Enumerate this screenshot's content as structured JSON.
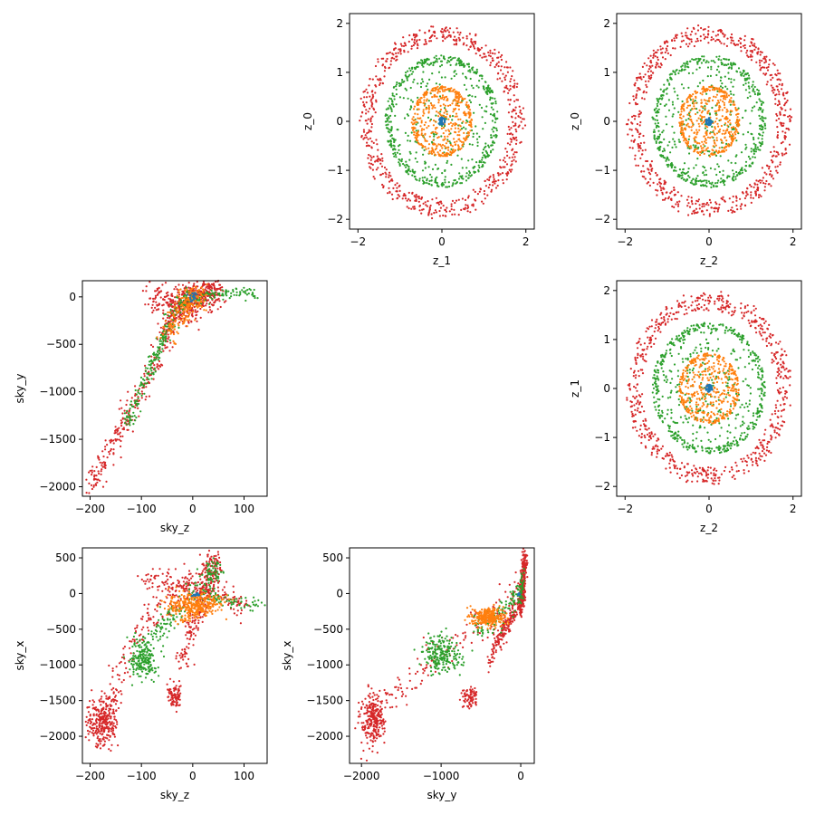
{
  "figure": {
    "background": "#ffffff"
  },
  "colors": {
    "ring_r0": "#1f77b4",
    "ring_r05": "#ff7f0e",
    "ring_r1": "#2ca02c",
    "ring_r2": "#d62728"
  },
  "chart_data": [
    {
      "type": "scatter",
      "grid": false,
      "xlabel": "z_1",
      "ylabel": "z_0",
      "xlim": [
        -2.2,
        2.2
      ],
      "ylim": [
        -2.2,
        2.2
      ],
      "xticks": [
        -2,
        0,
        2
      ],
      "xtick_labels": [
        "−2",
        "0",
        "2"
      ],
      "yticks": [
        -2,
        -1,
        0,
        1,
        2
      ],
      "ytick_labels": [
        "−2",
        "−1",
        "0",
        "1",
        "2"
      ],
      "series": [
        {
          "color": "#d62728",
          "kind": "ring",
          "r_min": 1.9,
          "r_max": 2.0,
          "ring_bias": 0.35,
          "inner": 0.0,
          "count": 650
        },
        {
          "color": "#2ca02c",
          "kind": "ring",
          "r_min": 0.0,
          "r_max": 1.35,
          "ring_bias": 0.55,
          "inner": 1.2,
          "count": 650
        },
        {
          "color": "#ff7f0e",
          "kind": "ring",
          "r_min": 0.0,
          "r_max": 0.72,
          "ring_bias": 0.3,
          "inner": 0.65,
          "count": 450
        },
        {
          "color": "#1f77b4",
          "kind": "ring",
          "r_min": 0.0,
          "r_max": 0.08,
          "ring_bias": 0.0,
          "inner": 0.0,
          "count": 40
        }
      ]
    },
    {
      "type": "scatter",
      "grid": false,
      "xlabel": "z_2",
      "ylabel": "z_0",
      "xlim": [
        -2.2,
        2.2
      ],
      "ylim": [
        -2.2,
        2.2
      ],
      "xticks": [
        -2,
        0,
        2
      ],
      "xtick_labels": [
        "−2",
        "0",
        "2"
      ],
      "yticks": [
        -2,
        -1,
        0,
        1,
        2
      ],
      "ytick_labels": [
        "−2",
        "−1",
        "0",
        "1",
        "2"
      ],
      "series": [
        {
          "color": "#d62728",
          "kind": "ring",
          "r_min": 1.9,
          "r_max": 2.0,
          "ring_bias": 0.35,
          "inner": 0.0,
          "count": 650
        },
        {
          "color": "#2ca02c",
          "kind": "ring",
          "r_min": 0.0,
          "r_max": 1.35,
          "ring_bias": 0.55,
          "inner": 1.2,
          "count": 650
        },
        {
          "color": "#ff7f0e",
          "kind": "ring",
          "r_min": 0.0,
          "r_max": 0.72,
          "ring_bias": 0.3,
          "inner": 0.65,
          "count": 450
        },
        {
          "color": "#1f77b4",
          "kind": "ring",
          "r_min": 0.0,
          "r_max": 0.08,
          "ring_bias": 0.0,
          "inner": 0.0,
          "count": 40
        }
      ]
    },
    {
      "type": "scatter",
      "grid": false,
      "xlabel": "sky_z",
      "ylabel": "sky_y",
      "xlim": [
        -215,
        145
      ],
      "ylim": [
        -2100,
        170
      ],
      "xticks": [
        -200,
        -100,
        0,
        100
      ],
      "xtick_labels": [
        "−200",
        "−100",
        "0",
        "100"
      ],
      "yticks": [
        -2000,
        -1500,
        -1000,
        -500,
        0
      ],
      "ytick_labels": [
        "−2000",
        "−1500",
        "−1000",
        "−500",
        "0"
      ],
      "series": [
        {
          "color": "#d62728",
          "kind": "band",
          "count": 380,
          "path": [
            [
              -200,
              -2000
            ],
            [
              -150,
              -1500
            ],
            [
              -100,
              -1000
            ],
            [
              -50,
              -400
            ],
            [
              -30,
              -100
            ],
            [
              0,
              0
            ]
          ],
          "spread": 8
        },
        {
          "color": "#d62728",
          "kind": "band",
          "count": 260,
          "path": [
            [
              -85,
              -30
            ],
            [
              -40,
              -15
            ],
            [
              0,
              0
            ],
            [
              30,
              30
            ],
            [
              45,
              40
            ]
          ],
          "spread": 10
        },
        {
          "color": "#d62728",
          "kind": "band",
          "count": 160,
          "path": [
            [
              -30,
              -150
            ],
            [
              -10,
              -100
            ],
            [
              0,
              0
            ],
            [
              30,
              40
            ],
            [
              50,
              45
            ]
          ],
          "spread": 12
        },
        {
          "color": "#2ca02c",
          "kind": "band",
          "count": 220,
          "path": [
            [
              -130,
              -1350
            ],
            [
              -90,
              -850
            ],
            [
              -60,
              -450
            ],
            [
              -30,
              -100
            ],
            [
              0,
              0
            ]
          ],
          "spread": 6
        },
        {
          "color": "#2ca02c",
          "kind": "band",
          "count": 90,
          "path": [
            [
              0,
              0
            ],
            [
              40,
              30
            ],
            [
              80,
              40
            ],
            [
              130,
              40
            ]
          ],
          "spread": 4
        },
        {
          "color": "#ff7f0e",
          "kind": "band",
          "count": 200,
          "path": [
            [
              -50,
              -450
            ],
            [
              -30,
              -200
            ],
            [
              -10,
              -50
            ],
            [
              0,
              0
            ],
            [
              20,
              20
            ]
          ],
          "spread": 10
        },
        {
          "color": "#1f77b4",
          "kind": "band",
          "count": 20,
          "path": [
            [
              -5,
              -5
            ],
            [
              5,
              5
            ]
          ],
          "spread": 3
        }
      ]
    },
    {
      "type": "scatter",
      "grid": false,
      "xlabel": "z_2",
      "ylabel": "z_1",
      "xlim": [
        -2.2,
        2.2
      ],
      "ylim": [
        -2.2,
        2.2
      ],
      "xticks": [
        -2,
        0,
        2
      ],
      "xtick_labels": [
        "−2",
        "0",
        "2"
      ],
      "yticks": [
        -2,
        -1,
        0,
        1,
        2
      ],
      "ytick_labels": [
        "−2",
        "−1",
        "0",
        "1",
        "2"
      ],
      "series": [
        {
          "color": "#d62728",
          "kind": "ring",
          "r_min": 1.9,
          "r_max": 2.0,
          "ring_bias": 0.35,
          "inner": 0.0,
          "count": 650
        },
        {
          "color": "#2ca02c",
          "kind": "ring",
          "r_min": 0.0,
          "r_max": 1.35,
          "ring_bias": 0.55,
          "inner": 1.2,
          "count": 650
        },
        {
          "color": "#ff7f0e",
          "kind": "ring",
          "r_min": 0.0,
          "r_max": 0.72,
          "ring_bias": 0.3,
          "inner": 0.65,
          "count": 450
        },
        {
          "color": "#1f77b4",
          "kind": "ring",
          "r_min": 0.0,
          "r_max": 0.08,
          "ring_bias": 0.0,
          "inner": 0.0,
          "count": 40
        }
      ]
    },
    {
      "type": "scatter",
      "grid": false,
      "xlabel": "sky_z",
      "ylabel": "sky_x",
      "xlim": [
        -215,
        145
      ],
      "ylim": [
        -2380,
        640
      ],
      "xticks": [
        -200,
        -100,
        0,
        100
      ],
      "xtick_labels": [
        "−200",
        "−100",
        "0",
        "100"
      ],
      "yticks": [
        -2000,
        -1500,
        -1000,
        -500,
        0,
        500
      ],
      "ytick_labels": [
        "−2000",
        "−1500",
        "−1000",
        "−500",
        "0",
        "500"
      ],
      "series": [
        {
          "color": "#d62728",
          "kind": "blob",
          "count": 260,
          "cx": -175,
          "cy": -1800,
          "rx": 25,
          "ry": 350
        },
        {
          "color": "#d62728",
          "kind": "band",
          "count": 260,
          "path": [
            [
              -190,
              -2100
            ],
            [
              -160,
              -1400
            ],
            [
              -120,
              -800
            ],
            [
              -80,
              -300
            ],
            [
              -40,
              0
            ],
            [
              0,
              100
            ],
            [
              40,
              300
            ],
            [
              40,
              500
            ]
          ],
          "spread": 12
        },
        {
          "color": "#d62728",
          "kind": "band",
          "count": 200,
          "path": [
            [
              -20,
              -1000
            ],
            [
              -5,
              -600
            ],
            [
              10,
              -300
            ],
            [
              30,
              0
            ],
            [
              40,
              300
            ],
            [
              40,
              500
            ]
          ],
          "spread": 8
        },
        {
          "color": "#d62728",
          "kind": "blob",
          "count": 90,
          "cx": -35,
          "cy": -1450,
          "rx": 12,
          "ry": 160
        },
        {
          "color": "#d62728",
          "kind": "band",
          "count": 160,
          "path": [
            [
              -90,
              200
            ],
            [
              -50,
              150
            ],
            [
              0,
              100
            ],
            [
              40,
              0
            ],
            [
              80,
              -100
            ],
            [
              100,
              -200
            ]
          ],
          "spread": 10
        },
        {
          "color": "#2ca02c",
          "kind": "blob",
          "count": 200,
          "cx": -95,
          "cy": -900,
          "rx": 20,
          "ry": 300
        },
        {
          "color": "#2ca02c",
          "kind": "band",
          "count": 170,
          "path": [
            [
              -70,
              -600
            ],
            [
              -40,
              -300
            ],
            [
              0,
              0
            ],
            [
              40,
              200
            ],
            [
              40,
              400
            ]
          ],
          "spread": 10
        },
        {
          "color": "#2ca02c",
          "kind": "band",
          "count": 60,
          "path": [
            [
              30,
              -50
            ],
            [
              80,
              -100
            ],
            [
              130,
              -180
            ]
          ],
          "spread": 5
        },
        {
          "color": "#ff7f0e",
          "kind": "blob",
          "count": 280,
          "cx": 0,
          "cy": -150,
          "rx": 40,
          "ry": 180
        },
        {
          "color": "#ff7f0e",
          "kind": "band",
          "count": 80,
          "path": [
            [
              -20,
              -400
            ],
            [
              0,
              -300
            ],
            [
              20,
              -200
            ],
            [
              40,
              -100
            ],
            [
              70,
              -100
            ]
          ],
          "spread": 6
        },
        {
          "color": "#1f77b4",
          "kind": "blob",
          "count": 20,
          "cx": 5,
          "cy": -20,
          "rx": 6,
          "ry": 15
        }
      ]
    },
    {
      "type": "scatter",
      "grid": false,
      "xlabel": "sky_y",
      "ylabel": "sky_x",
      "xlim": [
        -2150,
        170
      ],
      "ylim": [
        -2380,
        640
      ],
      "xticks": [
        -2000,
        -1000,
        0
      ],
      "xtick_labels": [
        "−2000",
        "−1000",
        "0"
      ],
      "yticks": [
        -2000,
        -1500,
        -1000,
        -500,
        0,
        500
      ],
      "ytick_labels": [
        "−2000",
        "−1500",
        "−1000",
        "−500",
        "0",
        "500"
      ],
      "series": [
        {
          "color": "#d62728",
          "kind": "blob",
          "count": 240,
          "cx": -1850,
          "cy": -1750,
          "rx": 130,
          "ry": 350
        },
        {
          "color": "#d62728",
          "kind": "band",
          "count": 260,
          "path": [
            [
              -2000,
              -2100
            ],
            [
              -1600,
              -1400
            ],
            [
              -1100,
              -900
            ],
            [
              -600,
              -500
            ],
            [
              -200,
              -150
            ],
            [
              0,
              0
            ],
            [
              30,
              250
            ],
            [
              50,
              500
            ]
          ],
          "spread": 18
        },
        {
          "color": "#d62728",
          "kind": "band",
          "count": 200,
          "path": [
            [
              -400,
              -1000
            ],
            [
              -300,
              -700
            ],
            [
              -200,
              -500
            ],
            [
              -100,
              -300
            ],
            [
              0,
              -150
            ],
            [
              50,
              0
            ]
          ],
          "spread": 10
        },
        {
          "color": "#d62728",
          "kind": "blob",
          "count": 80,
          "cx": -650,
          "cy": -1450,
          "rx": 80,
          "ry": 140
        },
        {
          "color": "#d62728",
          "kind": "band",
          "count": 160,
          "path": [
            [
              0,
              -100
            ],
            [
              20,
              50
            ],
            [
              40,
              200
            ],
            [
              60,
              500
            ]
          ],
          "spread": 14
        },
        {
          "color": "#2ca02c",
          "kind": "blob",
          "count": 220,
          "cx": -1000,
          "cy": -850,
          "rx": 200,
          "ry": 260
        },
        {
          "color": "#2ca02c",
          "kind": "band",
          "count": 150,
          "path": [
            [
              -600,
              -500
            ],
            [
              -300,
              -350
            ],
            [
              -100,
              -100
            ],
            [
              0,
              0
            ],
            [
              30,
              200
            ]
          ],
          "spread": 12
        },
        {
          "color": "#ff7f0e",
          "kind": "blob",
          "count": 280,
          "cx": -400,
          "cy": -330,
          "rx": 160,
          "ry": 130
        },
        {
          "color": "#1f77b4",
          "kind": "blob",
          "count": 20,
          "cx": -20,
          "cy": -10,
          "rx": 10,
          "ry": 12
        }
      ]
    }
  ]
}
